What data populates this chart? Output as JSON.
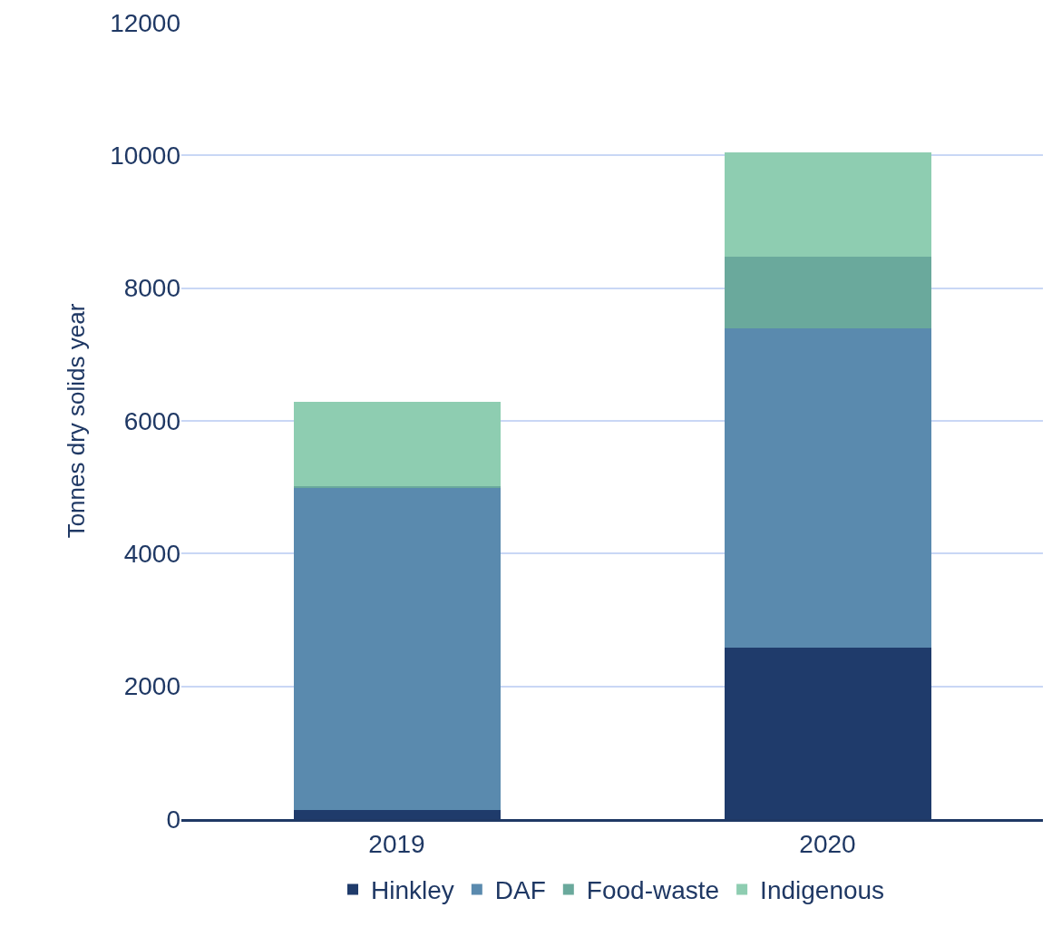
{
  "chart_data": {
    "type": "bar",
    "stacked": true,
    "ylabel": "Tonnes dry solids year",
    "categories": [
      "2019",
      "2020"
    ],
    "series": [
      {
        "name": "Hinkley",
        "color": "#1f3b6b",
        "values": [
          140,
          2580
        ]
      },
      {
        "name": "DAF",
        "color": "#5a8aae",
        "values": [
          4850,
          4810
        ]
      },
      {
        "name": "Food-waste",
        "color": "#6aa99c",
        "values": [
          20,
          1080
        ]
      },
      {
        "name": "Indigenous",
        "color": "#8ecdb1",
        "values": [
          1280,
          1580
        ]
      }
    ],
    "ylim": [
      0,
      12000
    ],
    "yticks": [
      0,
      2000,
      4000,
      6000,
      8000,
      10000,
      12000
    ],
    "grid": "y",
    "legend": "bottom"
  }
}
